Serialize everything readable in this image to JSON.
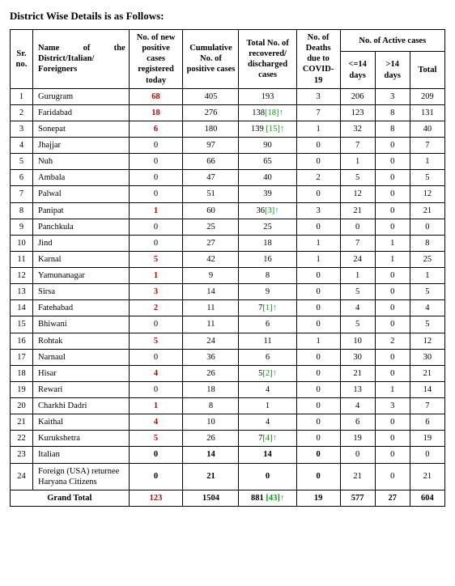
{
  "title": "District Wise Details is as Follows:",
  "columns": {
    "sr": "Sr. no.",
    "name": "Name of the District/Italian/ Foreigners",
    "new": "No. of new positive cases registered today",
    "cum": "Cumulative No. of positive cases",
    "rec": "Total No. of recovered/ discharged cases",
    "deaths": "No. of Deaths due to COVID-19",
    "active_group": "No. of Active cases",
    "a14": "<=14 days",
    "g14": ">14 days",
    "tot": "Total"
  },
  "rows": [
    {
      "sr": "1",
      "name": "Gurugram",
      "new": "68",
      "new_red": true,
      "cum": "405",
      "rec": "193",
      "rec_inc": "",
      "deaths": "3",
      "a14": "206",
      "g14": "3",
      "tot": "209"
    },
    {
      "sr": "2",
      "name": "Faridabad",
      "new": "18",
      "new_red": true,
      "cum": "276",
      "rec": "138",
      "rec_inc": "[18]",
      "deaths": "7",
      "a14": "123",
      "g14": "8",
      "tot": "131"
    },
    {
      "sr": "3",
      "name": "Sonepat",
      "new": "6",
      "new_red": true,
      "cum": "180",
      "rec": "139",
      "rec_inc": " [15]",
      "deaths": "1",
      "a14": "32",
      "g14": "8",
      "tot": "40"
    },
    {
      "sr": "4",
      "name": "Jhajjar",
      "new": "0",
      "new_red": false,
      "cum": "97",
      "rec": "90",
      "rec_inc": "",
      "deaths": "0",
      "a14": "7",
      "g14": "0",
      "tot": "7"
    },
    {
      "sr": "5",
      "name": "Nuh",
      "new": "0",
      "new_red": false,
      "cum": "66",
      "rec": "65",
      "rec_inc": "",
      "deaths": "0",
      "a14": "1",
      "g14": "0",
      "tot": "1"
    },
    {
      "sr": "6",
      "name": "Ambala",
      "new": "0",
      "new_red": false,
      "cum": "47",
      "rec": "40",
      "rec_inc": "",
      "deaths": "2",
      "a14": "5",
      "g14": "0",
      "tot": "5"
    },
    {
      "sr": "7",
      "name": "Palwal",
      "new": "0",
      "new_red": false,
      "cum": "51",
      "rec": "39",
      "rec_inc": "",
      "deaths": "0",
      "a14": "12",
      "g14": "0",
      "tot": "12"
    },
    {
      "sr": "8",
      "name": "Panipat",
      "new": "1",
      "new_red": true,
      "cum": "60",
      "rec": "36",
      "rec_inc": "[3]",
      "deaths": "3",
      "a14": "21",
      "g14": "0",
      "tot": "21"
    },
    {
      "sr": "9",
      "name": "Panchkula",
      "new": "0",
      "new_red": false,
      "cum": "25",
      "rec": "25",
      "rec_inc": "",
      "deaths": "0",
      "a14": "0",
      "g14": "0",
      "tot": "0"
    },
    {
      "sr": "10",
      "name": "Jind",
      "new": "0",
      "new_red": false,
      "cum": "27",
      "rec": "18",
      "rec_inc": "",
      "deaths": "1",
      "a14": "7",
      "g14": "1",
      "tot": "8"
    },
    {
      "sr": "11",
      "name": "Karnal",
      "new": "5",
      "new_red": true,
      "cum": "42",
      "rec": "16",
      "rec_inc": "",
      "deaths": "1",
      "a14": "24",
      "g14": "1",
      "tot": "25"
    },
    {
      "sr": "12",
      "name": "Yamunanagar",
      "new": "1",
      "new_red": true,
      "cum": "9",
      "rec": "8",
      "rec_inc": "",
      "deaths": "0",
      "a14": "1",
      "g14": "0",
      "tot": "1"
    },
    {
      "sr": "13",
      "name": "Sirsa",
      "new": "3",
      "new_red": true,
      "cum": "14",
      "rec": "9",
      "rec_inc": "",
      "deaths": "0",
      "a14": "5",
      "g14": "0",
      "tot": "5"
    },
    {
      "sr": "14",
      "name": "Fatehabad",
      "new": "2",
      "new_red": true,
      "cum": "11",
      "rec": "7",
      "rec_inc": "[1]",
      "deaths": "0",
      "a14": "4",
      "g14": "0",
      "tot": "4"
    },
    {
      "sr": "15",
      "name": "Bhiwani",
      "new": "0",
      "new_red": false,
      "cum": "11",
      "rec": "6",
      "rec_inc": "",
      "deaths": "0",
      "a14": "5",
      "g14": "0",
      "tot": "5"
    },
    {
      "sr": "16",
      "name": "Rohtak",
      "new": "5",
      "new_red": true,
      "cum": "24",
      "rec": "11",
      "rec_inc": "",
      "deaths": "1",
      "a14": "10",
      "g14": "2",
      "tot": "12"
    },
    {
      "sr": "17",
      "name": "Narnaul",
      "new": "0",
      "new_red": false,
      "cum": "36",
      "rec": "6",
      "rec_inc": "",
      "deaths": "0",
      "a14": "30",
      "g14": "0",
      "tot": "30"
    },
    {
      "sr": "18",
      "name": "Hisar",
      "new": "4",
      "new_red": true,
      "cum": "26",
      "rec": "5",
      "rec_inc": "[2]",
      "deaths": "0",
      "a14": "21",
      "g14": "0",
      "tot": "21"
    },
    {
      "sr": "19",
      "name": "Rewari",
      "new": "0",
      "new_red": false,
      "cum": "18",
      "rec": "4",
      "rec_inc": "",
      "deaths": "0",
      "a14": "13",
      "g14": "1",
      "tot": "14"
    },
    {
      "sr": "20",
      "name": "Charkhi Dadri",
      "new": "1",
      "new_red": true,
      "cum": "8",
      "rec": "1",
      "rec_inc": "",
      "deaths": "0",
      "a14": "4",
      "g14": "3",
      "tot": "7"
    },
    {
      "sr": "21",
      "name": "Kaithal",
      "new": "4",
      "new_red": true,
      "cum": "10",
      "rec": "4",
      "rec_inc": "",
      "deaths": "0",
      "a14": "6",
      "g14": "0",
      "tot": "6"
    },
    {
      "sr": "22",
      "name": "Kurukshetra",
      "new": "5",
      "new_red": true,
      "cum": "26",
      "rec": "7",
      "rec_inc": "[4]",
      "deaths": "0",
      "a14": "19",
      "g14": "0",
      "tot": "19"
    },
    {
      "sr": "23",
      "name": "Italian",
      "new": "0",
      "new_red": false,
      "new_bold": true,
      "cum": "14",
      "rec": "14",
      "rec_inc": "",
      "deaths": "0",
      "a14": "0",
      "g14": "0",
      "tot": "0",
      "bold_row": true
    },
    {
      "sr": "24",
      "name": "Foreign (USA) returnee Haryana Citizens",
      "new": "0",
      "new_red": false,
      "new_bold": true,
      "cum": "21",
      "rec": "0",
      "rec_inc": "",
      "deaths": "0",
      "a14": "21",
      "g14": "0",
      "tot": "21",
      "bold_row": true
    }
  ],
  "grand": {
    "label": "Grand Total",
    "new": "123",
    "cum": "1504",
    "rec": "881",
    "rec_inc": " [43]",
    "deaths": "19",
    "a14": "577",
    "g14": "27",
    "tot": "604"
  },
  "colors": {
    "red": "#c00000",
    "green": "#00a000",
    "arrow": "#1f6fd4",
    "border": "#000000",
    "background": "#ffffff"
  }
}
